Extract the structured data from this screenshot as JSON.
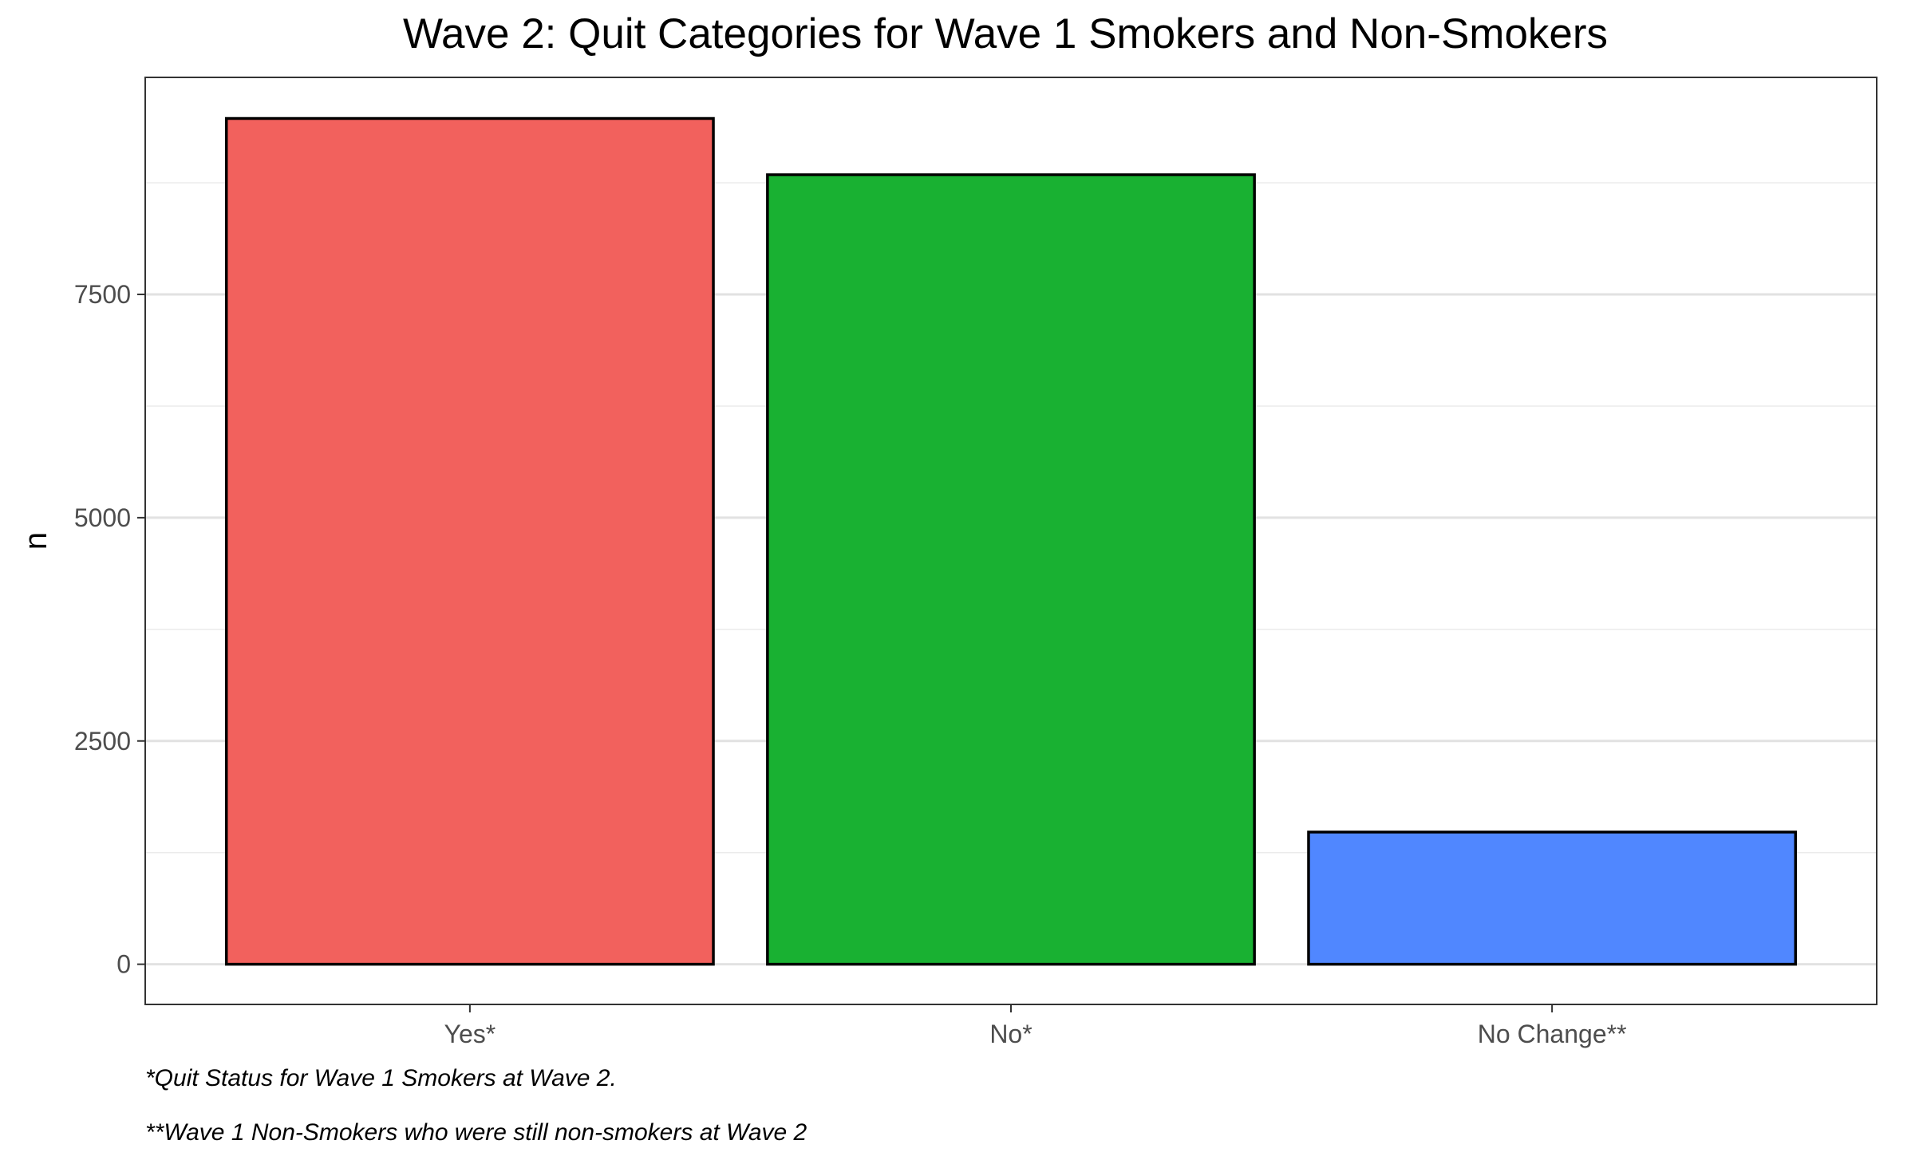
{
  "chart_data": {
    "type": "bar",
    "title": "Wave 2: Quit Categories for Wave 1 Smokers and Non-Smokers",
    "xlabel": "",
    "ylabel": "n",
    "categories": [
      "Yes*",
      "No*",
      "No Change**"
    ],
    "values": [
      9470,
      8840,
      1480
    ],
    "colors": [
      "#F2615D",
      "#19B132",
      "#5087FF"
    ],
    "yticks": [
      0,
      2500,
      5000,
      7500
    ],
    "ylim": [
      -450,
      9930
    ],
    "grid": true,
    "legend": "none",
    "captions": [
      "*Quit Status for Wave 1 Smokers at Wave 2.",
      "**Wave 1 Non-Smokers who were still non-smokers at Wave 2"
    ]
  }
}
